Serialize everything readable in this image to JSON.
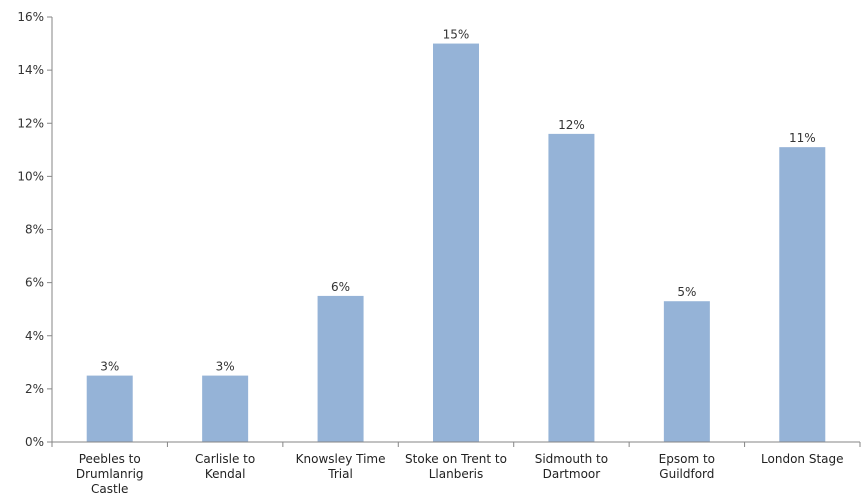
{
  "chart_data": {
    "type": "bar",
    "title": "",
    "xlabel": "",
    "ylabel": "",
    "categories": [
      "Peebles to Drumlanrig Castle",
      "Carlisle to Kendal",
      "Knowsley Time Trial",
      "Stoke on Trent to Llanberis",
      "Sidmouth to Dartmoor",
      "Epsom to Guildford",
      "London Stage"
    ],
    "category_lines": [
      [
        "Peebles to",
        "Drumlanrig",
        "Castle"
      ],
      [
        "Carlisle to",
        "Kendal"
      ],
      [
        "Knowsley Time",
        "Trial"
      ],
      [
        "Stoke on Trent to",
        "Llanberis"
      ],
      [
        "Sidmouth to",
        "Dartmoor"
      ],
      [
        "Epsom to",
        "Guildford"
      ],
      [
        "London Stage"
      ]
    ],
    "values": [
      2.5,
      2.5,
      5.5,
      15.0,
      11.6,
      5.3,
      11.1
    ],
    "data_labels": [
      "3%",
      "3%",
      "6%",
      "15%",
      "12%",
      "5%",
      "11%"
    ],
    "ylim": [
      0,
      16
    ],
    "yticks": [
      0,
      2,
      4,
      6,
      8,
      10,
      12,
      14,
      16
    ],
    "ytick_labels": [
      "0%",
      "2%",
      "4%",
      "6%",
      "8%",
      "10%",
      "12%",
      "14%",
      "16%"
    ],
    "grid": false,
    "legend": "none",
    "colors": {
      "bar": "#95b3d7",
      "axis": "#868686"
    }
  }
}
